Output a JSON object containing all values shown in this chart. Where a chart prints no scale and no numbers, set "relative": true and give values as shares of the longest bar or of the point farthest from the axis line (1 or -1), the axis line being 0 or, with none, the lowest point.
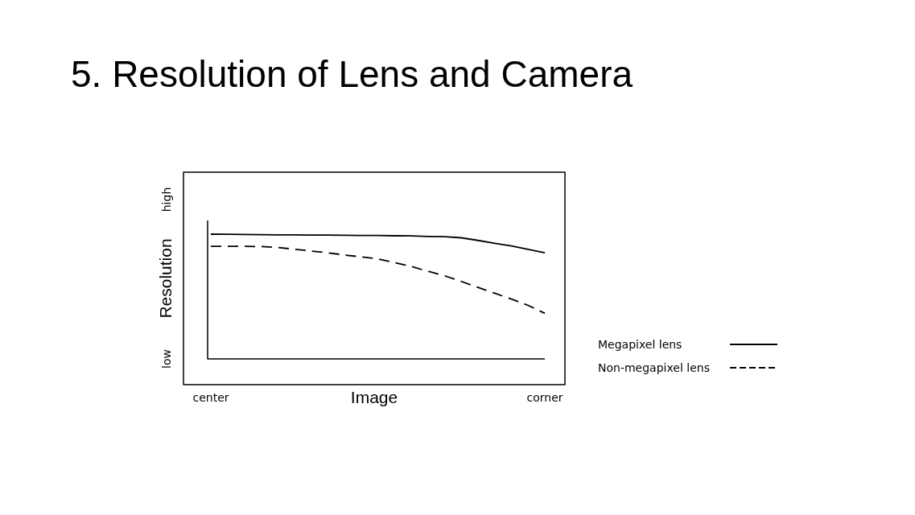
{
  "chart_data": {
    "type": "line",
    "title": "5. Resolution of Lens and Camera",
    "xlabel": "Image",
    "ylabel": "Resolution",
    "categories": [
      "center",
      null,
      null,
      null,
      null,
      null,
      null,
      null,
      null,
      null,
      null,
      null,
      null,
      null,
      null,
      null,
      null,
      null,
      null,
      null,
      "corner"
    ],
    "relative": true,
    "annotations": [
      "low",
      "high"
    ],
    "series": [
      {
        "name": "Megapixel lens",
        "color": "#000000",
        "line_style": "solid",
        "values": [
          1.0,
          0.999,
          0.998,
          0.996,
          0.995,
          0.994,
          0.993,
          0.993,
          0.991,
          0.99,
          0.989,
          0.987,
          0.986,
          0.982,
          0.98,
          0.971,
          0.95,
          0.927,
          0.905,
          0.878,
          0.851
        ]
      },
      {
        "name": "Non-megapixel lens",
        "color": "#000000",
        "line_style": "dashed",
        "values": [
          0.902,
          0.902,
          0.902,
          0.901,
          0.894,
          0.879,
          0.865,
          0.851,
          0.833,
          0.818,
          0.802,
          0.773,
          0.741,
          0.703,
          0.666,
          0.621,
          0.573,
          0.526,
          0.48,
          0.429,
          0.365
        ]
      }
    ],
    "legend": "bottom right",
    "marker": "none"
  }
}
